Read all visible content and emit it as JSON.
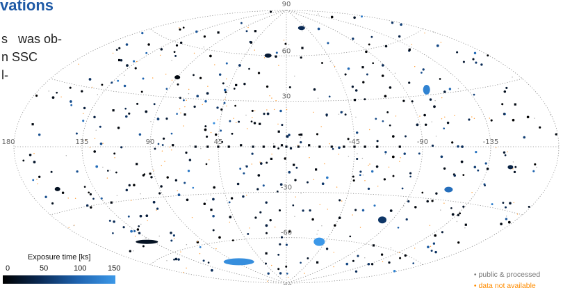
{
  "page": {
    "heading": "vations",
    "body_lines": [
      "s   was ob-",
      "n SSC",
      "l-"
    ]
  },
  "chart_data": {
    "type": "scatter",
    "projection": "aitoff",
    "grid": true,
    "lat_ticks": [
      90,
      60,
      30,
      -30,
      -60,
      -90
    ],
    "lon_ticks": [
      180,
      135,
      90,
      45,
      -45,
      -90,
      -135
    ],
    "lat_labels": [
      "90",
      "60",
      "30",
      "-30",
      "-60",
      "-90"
    ],
    "lon_labels": [
      "180",
      "135",
      "90",
      "45",
      "-45",
      "-90",
      "-135"
    ],
    "colorbar": {
      "title": "Exposure time [ks]",
      "ticks": [
        0,
        50,
        100,
        150
      ],
      "tick_labels": [
        "0",
        "50",
        "100",
        "150"
      ],
      "range": [
        0,
        150
      ],
      "colors": [
        "#000000",
        "#0a2a55",
        "#1f64b0",
        "#3c98e8"
      ]
    },
    "legend": {
      "placement": "bottom-right",
      "entries": [
        {
          "label": "public & processed",
          "color": "#888888"
        },
        {
          "label": "data not available",
          "color": "#ff8c00"
        }
      ]
    },
    "regions": [
      {
        "lon": 85,
        "lat": -73,
        "exposure": 140
      },
      {
        "lon": -38,
        "lat": -62,
        "exposure": 150
      },
      {
        "lon": -106,
        "lat": 33,
        "exposure": 130
      },
      {
        "lon": -115,
        "lat": -24,
        "exposure": 110
      },
      {
        "lon": 140,
        "lat": -52,
        "exposure": 20
      },
      {
        "lon": -82,
        "lat": -45,
        "exposure": 60
      },
      {
        "lon": 20,
        "lat": 60,
        "exposure": 30
      },
      {
        "lon": -35,
        "lat": 78,
        "exposure": 50
      },
      {
        "lon": 90,
        "lat": 42,
        "exposure": 10
      },
      {
        "lon": -150,
        "lat": -10,
        "exposure": 40
      },
      {
        "lon": 160,
        "lat": -20,
        "exposure": 20
      }
    ],
    "sources": [
      {
        "lon": 0,
        "lat": 0,
        "exposure": 20
      },
      {
        "lon": 3,
        "lat": 1,
        "exposure": 10
      },
      {
        "lon": -3,
        "lat": -1,
        "exposure": 30
      },
      {
        "lon": 8,
        "lat": 0,
        "exposure": 10
      },
      {
        "lon": -8,
        "lat": 0,
        "exposure": 15
      },
      {
        "lon": 15,
        "lat": 0,
        "exposure": 10
      },
      {
        "lon": -15,
        "lat": 1,
        "exposure": 10
      },
      {
        "lon": 22,
        "lat": 0,
        "exposure": 20
      },
      {
        "lon": -22,
        "lat": 0,
        "exposure": 10
      },
      {
        "lon": 30,
        "lat": 1,
        "exposure": 10
      },
      {
        "lon": -30,
        "lat": 0,
        "exposure": 15
      },
      {
        "lon": 38,
        "lat": 0,
        "exposure": 10
      },
      {
        "lon": -38,
        "lat": 0,
        "exposure": 10
      },
      {
        "lon": 45,
        "lat": 0,
        "exposure": 10
      },
      {
        "lon": -45,
        "lat": 0,
        "exposure": 10
      },
      {
        "lon": 52,
        "lat": 0,
        "exposure": 10
      },
      {
        "lon": -52,
        "lat": 0,
        "exposure": 10
      },
      {
        "lon": 60,
        "lat": 0,
        "exposure": 15
      },
      {
        "lon": -60,
        "lat": 0,
        "exposure": 10
      },
      {
        "lon": 75,
        "lat": 1,
        "exposure": 10
      },
      {
        "lon": -75,
        "lat": 0,
        "exposure": 10
      },
      {
        "lon": 5,
        "lat": 10,
        "exposure": 10
      },
      {
        "lon": -5,
        "lat": -12,
        "exposure": 10
      },
      {
        "lon": 10,
        "lat": -8,
        "exposure": 10
      },
      {
        "lon": -10,
        "lat": 8,
        "exposure": 10
      },
      {
        "lon": 18,
        "lat": 15,
        "exposure": 10
      },
      {
        "lon": -20,
        "lat": -15,
        "exposure": 10
      },
      {
        "lon": 110,
        "lat": 70,
        "exposure": 10
      },
      {
        "lon": 60,
        "lat": 75,
        "exposure": 10
      },
      {
        "lon": -20,
        "lat": 65,
        "exposure": 10
      },
      {
        "lon": 150,
        "lat": 45,
        "exposure": 10
      },
      {
        "lon": 120,
        "lat": 20,
        "exposure": 10
      },
      {
        "lon": 100,
        "lat": -10,
        "exposure": 10
      },
      {
        "lon": 130,
        "lat": -30,
        "exposure": 10
      },
      {
        "lon": 60,
        "lat": -40,
        "exposure": 10
      },
      {
        "lon": 30,
        "lat": -70,
        "exposure": 10
      },
      {
        "lon": -60,
        "lat": -75,
        "exposure": 10
      },
      {
        "lon": -100,
        "lat": -60,
        "exposure": 10
      },
      {
        "lon": -150,
        "lat": -40,
        "exposure": 10
      },
      {
        "lon": -160,
        "lat": 20,
        "exposure": 10
      },
      {
        "lon": -130,
        "lat": 55,
        "exposure": 10
      },
      {
        "lon": -70,
        "lat": 50,
        "exposure": 10
      },
      {
        "lon": -50,
        "lat": 30,
        "exposure": 10
      },
      {
        "lon": 40,
        "lat": 40,
        "exposure": 10
      },
      {
        "lon": 70,
        "lat": 20,
        "exposure": 10
      },
      {
        "lon": 170,
        "lat": 10,
        "exposure": 10
      }
    ]
  }
}
